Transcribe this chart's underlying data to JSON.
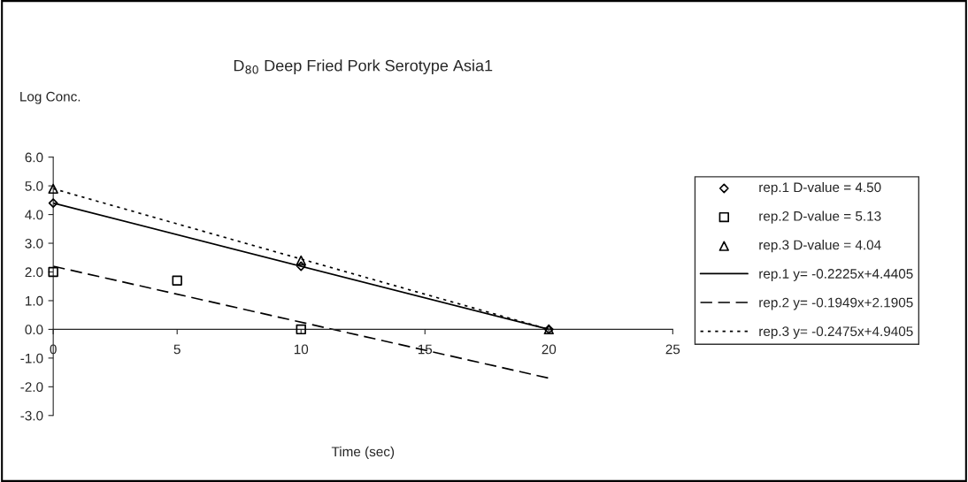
{
  "chart_data": {
    "type": "scatter",
    "title": "D$_{80}$ Deep Fried Pork Serotype Asia1",
    "xlabel": "Time (sec)",
    "ylabel": "Log Conc.",
    "series": [
      {
        "name": "rep.1 D-value = 4.50",
        "marker": "diamond",
        "color": "#000000",
        "x": [
          0,
          10,
          20
        ],
        "values": [
          4.4,
          2.2,
          0.0
        ]
      },
      {
        "name": "rep.2 D-value = 5.13",
        "marker": "square",
        "color": "#000000",
        "x": [
          0,
          5,
          10
        ],
        "values": [
          2.0,
          1.7,
          0.0
        ]
      },
      {
        "name": "rep.3 D-value = 4.04",
        "marker": "triangle",
        "color": "#000000",
        "x": [
          0,
          10,
          20
        ],
        "values": [
          4.9,
          2.4,
          0.0
        ]
      },
      {
        "name": "rep.1 y= -0.2225x+4.4405",
        "type": "line",
        "line_style": "solid",
        "color": "#000000",
        "x": [
          0,
          20
        ],
        "values": [
          4.4,
          0.0
        ]
      },
      {
        "name": "rep.2 y= -0.1949x+2.1905",
        "type": "line",
        "line_style": "dashed",
        "color": "#000000",
        "x": [
          0,
          20
        ],
        "values": [
          2.2,
          -1.7
        ]
      },
      {
        "name": "rep.3 y= -0.2475x+4.9405",
        "type": "line",
        "line_style": "dotted",
        "color": "#000000",
        "x": [
          0,
          20
        ],
        "values": [
          4.9,
          0.0
        ]
      }
    ],
    "xlim": [
      0,
      25
    ],
    "xticks": [
      0,
      5,
      10,
      15,
      20,
      25
    ],
    "ylim": [
      -3,
      6
    ],
    "yticks": [
      {
        "value": -3,
        "label": "-3.0"
      },
      {
        "value": -2,
        "label": "-2.0"
      },
      {
        "value": -1,
        "label": "-1.0"
      },
      {
        "value": 0,
        "label": "0.0"
      },
      {
        "value": 1,
        "label": "1.0"
      },
      {
        "value": 2,
        "label": "2.0"
      },
      {
        "value": 3,
        "label": "3.0"
      },
      {
        "value": 4,
        "label": "4.0"
      },
      {
        "value": 5,
        "label": "5.0"
      },
      {
        "value": 6,
        "label": "6.0"
      }
    ],
    "grid": false,
    "legend": "right"
  }
}
